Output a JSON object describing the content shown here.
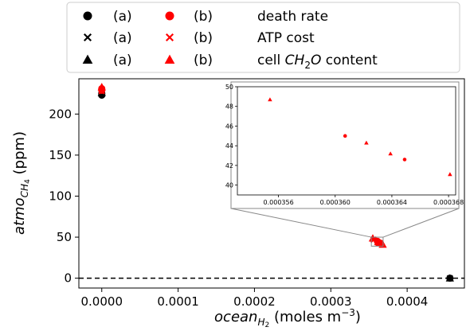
{
  "chart_data": {
    "type": "scatter",
    "title": "",
    "xlabel": {
      "base": "ocean",
      "sub": "H",
      "subsub": "2",
      "rest": " (moles m",
      "sup": "−3",
      "close": ")"
    },
    "ylabel": {
      "base": "atmo",
      "sub": "CH",
      "subsub": "4",
      "rest": " (ppm)"
    },
    "xlim": [
      -3e-05,
      0.000475
    ],
    "ylim": [
      -12,
      243
    ],
    "xticks": [
      {
        "value": 0.0,
        "label": "0.0000"
      },
      {
        "value": 0.0001,
        "label": "0.0001"
      },
      {
        "value": 0.0002,
        "label": "0.0002"
      },
      {
        "value": 0.0003,
        "label": "0.0003"
      },
      {
        "value": 0.0004,
        "label": "0.0004"
      }
    ],
    "yticks": [
      {
        "value": 0,
        "label": "0"
      },
      {
        "value": 50,
        "label": "50"
      },
      {
        "value": 100,
        "label": "100"
      },
      {
        "value": 150,
        "label": "150"
      },
      {
        "value": 200,
        "label": "200"
      }
    ],
    "reference_line": {
      "y": 0,
      "style": "dashed",
      "color": "#000000"
    },
    "colors": {
      "a": "#000000",
      "b": "#ff0000"
    },
    "legend": {
      "placement": "top",
      "rows": [
        {
          "a_label": "(a)",
          "b_label": "(b)",
          "marker": "circle",
          "text": "death rate"
        },
        {
          "a_label": "(a)",
          "b_label": "(b)",
          "marker": "x",
          "text": "ATP cost"
        },
        {
          "a_label": "(a)",
          "b_label": "(b)",
          "marker": "triangle",
          "text_pre": "cell ",
          "text_italic": "CH",
          "text_sub": "2",
          "text_italic2": "O",
          "text_post": " content"
        }
      ]
    },
    "series": [
      {
        "group": "a",
        "marker": "circle",
        "points": [
          [
            0,
            223
          ],
          [
            0,
            225
          ],
          [
            0.000456,
            0
          ]
        ]
      },
      {
        "group": "a",
        "marker": "x",
        "points": [
          [
            0,
            224
          ],
          [
            0.000456,
            0
          ]
        ]
      },
      {
        "group": "a",
        "marker": "triangle",
        "points": [
          [
            0,
            226
          ],
          [
            0.000456,
            0
          ]
        ]
      },
      {
        "group": "b",
        "marker": "circle",
        "points": [
          [
            0,
            231
          ],
          [
            0,
            229
          ],
          [
            0.000361,
            45.0
          ],
          [
            0.000365,
            42.6
          ]
        ]
      },
      {
        "group": "b",
        "marker": "x",
        "points": [
          [
            0,
            228
          ],
          [
            0.000356,
            47.0
          ],
          [
            0.000362,
            43.5
          ]
        ]
      },
      {
        "group": "b",
        "marker": "triangle",
        "points": [
          [
            0,
            233
          ],
          [
            0.000355,
            48.7
          ],
          [
            0.000362,
            44.3
          ],
          [
            0.000364,
            43.2
          ],
          [
            0.000368,
            41.1
          ]
        ]
      }
    ],
    "inset": {
      "xlim": [
        0.0003531,
        0.0003685
      ],
      "ylim": [
        39,
        50
      ],
      "xticks": [
        {
          "value": 0.000356,
          "label": "0.000356"
        },
        {
          "value": 0.00036,
          "label": "0.000360"
        },
        {
          "value": 0.000364,
          "label": "0.000364"
        },
        {
          "value": 0.000368,
          "label": "0.000368"
        }
      ],
      "yticks": [
        {
          "value": 40,
          "label": "40"
        },
        {
          "value": 42,
          "label": "42"
        },
        {
          "value": 44,
          "label": "44"
        },
        {
          "value": 46,
          "label": "46"
        },
        {
          "value": 48,
          "label": "48"
        },
        {
          "value": 50,
          "label": "50"
        }
      ],
      "points": [
        {
          "marker": "triangle",
          "x": 0.0003554,
          "y": 48.7
        },
        {
          "marker": "circle",
          "x": 0.0003607,
          "y": 45.0
        },
        {
          "marker": "triangle",
          "x": 0.0003622,
          "y": 44.3
        },
        {
          "marker": "triangle",
          "x": 0.0003639,
          "y": 43.2
        },
        {
          "marker": "circle",
          "x": 0.0003649,
          "y": 42.6
        },
        {
          "marker": "triangle",
          "x": 0.0003681,
          "y": 41.1
        }
      ]
    }
  }
}
